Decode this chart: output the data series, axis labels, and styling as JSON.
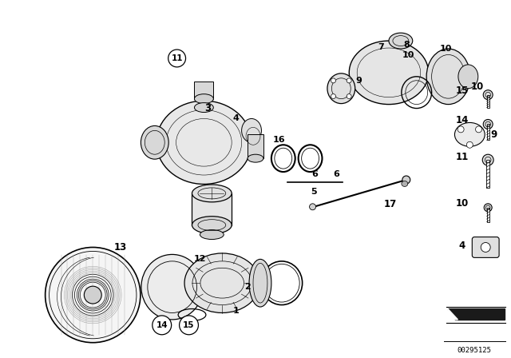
{
  "background_color": "#ffffff",
  "fig_width": 6.4,
  "fig_height": 4.48,
  "line_color": "#000000",
  "part_number": "00295125"
}
